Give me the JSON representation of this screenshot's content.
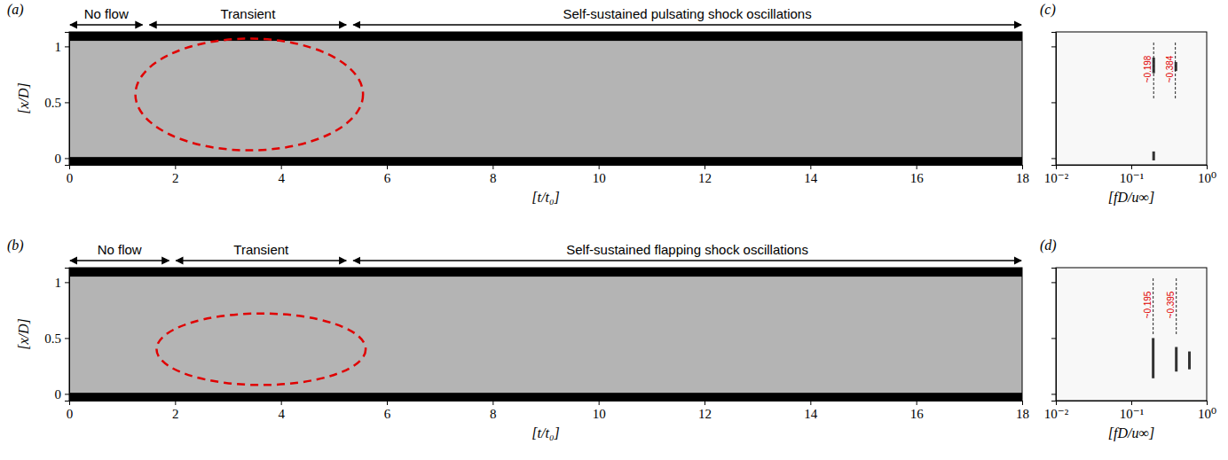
{
  "chart_data": [
    {
      "type": "xt_diagram",
      "panel": "(a)",
      "x_label": "[t/t₀]",
      "y_label": "[x/D]",
      "xlim": [
        0,
        18
      ],
      "xticks": [
        0,
        2,
        4,
        6,
        8,
        10,
        12,
        14,
        16,
        18
      ],
      "ylim": [
        -0.06,
        1.13
      ],
      "yticks": [
        0,
        0.5,
        1
      ],
      "walls": [
        [
          -0.06,
          0.01
        ],
        [
          1.05,
          1.13
        ]
      ],
      "regions": [
        {
          "label": "No flow",
          "t": [
            0,
            1.4
          ]
        },
        {
          "label": "Transient",
          "t": [
            1.5,
            5.25
          ]
        },
        {
          "label": "Self-sustained pulsating shock oscillations",
          "t": [
            5.35,
            18
          ]
        }
      ],
      "highlight": {
        "t": [
          1.25,
          5.55
        ],
        "x": [
          0.07,
          1.07
        ]
      }
    },
    {
      "type": "xt_diagram",
      "panel": "(b)",
      "x_label": "[t/t₀]",
      "y_label": "[x/D]",
      "xlim": [
        0,
        18
      ],
      "xticks": [
        0,
        2,
        4,
        6,
        8,
        10,
        12,
        14,
        16,
        18
      ],
      "ylim": [
        -0.06,
        1.13
      ],
      "yticks": [
        0,
        0.5,
        1
      ],
      "walls": [
        [
          -0.06,
          0.01
        ],
        [
          1.05,
          1.13
        ]
      ],
      "regions": [
        {
          "label": "No flow",
          "t": [
            0,
            1.9
          ]
        },
        {
          "label": "Transient",
          "t": [
            2.0,
            5.25
          ]
        },
        {
          "label": "Self-sustained flapping shock oscillations",
          "t": [
            5.35,
            18
          ]
        }
      ],
      "highlight": {
        "t": [
          1.65,
          5.6
        ],
        "x": [
          0.08,
          0.72
        ]
      }
    },
    {
      "type": "spectrum",
      "panel": "(c)",
      "x_label": "[fD/u∞]",
      "log": "x",
      "xlim": [
        0.01,
        1
      ],
      "xticks": [
        {
          "value": 0.01,
          "label": "10⁻²"
        },
        {
          "value": 0.1,
          "label": "10⁻¹"
        },
        {
          "value": 1,
          "label": "10⁰"
        }
      ],
      "ylim": [
        -0.06,
        1.13
      ],
      "yticks": [
        0,
        0.5,
        1
      ],
      "tick_labels": "x",
      "peaks": [
        {
          "f": 0.198,
          "x": [
            0.76,
            0.9
          ]
        },
        {
          "f": 0.198,
          "x": [
            -0.02,
            0.06
          ]
        },
        {
          "f": 0.39,
          "x": [
            0.78,
            0.86
          ]
        }
      ],
      "markers": [
        {
          "value": 0.198,
          "label": "~0.198"
        },
        {
          "value": 0.384,
          "label": "~0.384"
        }
      ]
    },
    {
      "type": "spectrum",
      "panel": "(d)",
      "x_label": "[fD/u∞]",
      "log": "x",
      "xlim": [
        0.01,
        1
      ],
      "xticks": [
        {
          "value": 0.01,
          "label": "10⁻²"
        },
        {
          "value": 0.1,
          "label": "10⁻¹"
        },
        {
          "value": 1,
          "label": "10⁰"
        }
      ],
      "ylim": [
        -0.06,
        1.13
      ],
      "yticks": [
        0,
        0.5,
        1
      ],
      "tick_labels": "x",
      "peaks": [
        {
          "f": 0.195,
          "x": [
            0.14,
            0.5
          ]
        },
        {
          "f": 0.395,
          "x": [
            0.2,
            0.42
          ]
        },
        {
          "f": 0.59,
          "x": [
            0.22,
            0.38
          ]
        }
      ],
      "markers": [
        {
          "value": 0.195,
          "label": "~0.195"
        },
        {
          "value": 0.395,
          "label": "~0.395"
        }
      ]
    }
  ]
}
